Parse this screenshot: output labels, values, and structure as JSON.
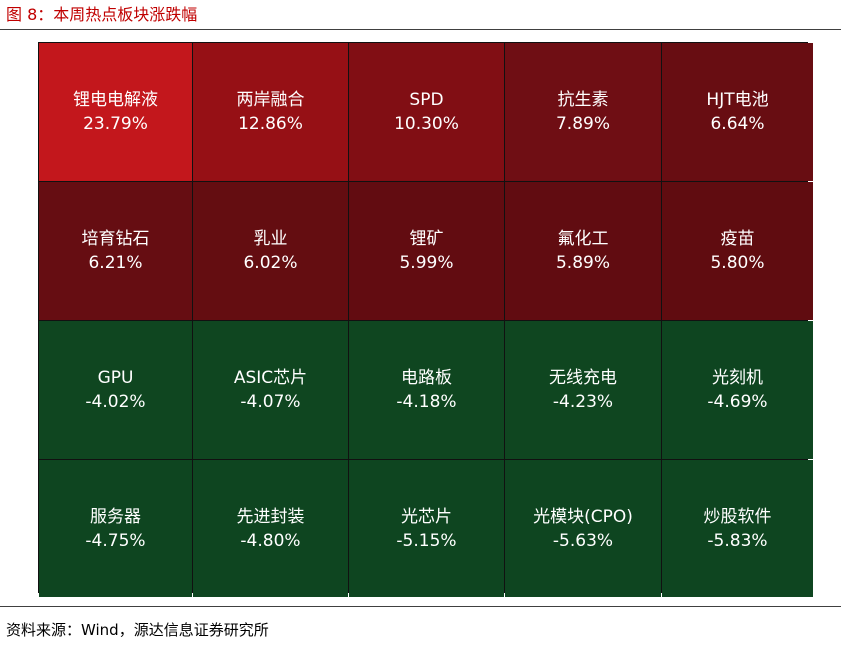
{
  "figure": {
    "title": "图 8：本周热点板块涨跌幅",
    "source": "资料来源：Wind，源达信息证券研究所"
  },
  "chart_data": {
    "type": "heatmap",
    "title": "图 8：本周热点板块涨跌幅",
    "rows": 4,
    "columns": 5,
    "cells": [
      {
        "label": "锂电电解液",
        "value": 23.79,
        "display": "23.79%",
        "color": "#c3171c"
      },
      {
        "label": "两岸融合",
        "value": 12.86,
        "display": "12.86%",
        "color": "#961015"
      },
      {
        "label": "SPD",
        "value": 10.3,
        "display": "10.30%",
        "color": "#810e14"
      },
      {
        "label": "抗生素",
        "value": 7.89,
        "display": "7.89%",
        "color": "#6f0e14"
      },
      {
        "label": "HJT电池",
        "value": 6.64,
        "display": "6.64%",
        "color": "#680d12"
      },
      {
        "label": "培育钻石",
        "value": 6.21,
        "display": "6.21%",
        "color": "#660d12"
      },
      {
        "label": "乳业",
        "value": 6.02,
        "display": "6.02%",
        "color": "#640d11"
      },
      {
        "label": "锂矿",
        "value": 5.99,
        "display": "5.99%",
        "color": "#620c11"
      },
      {
        "label": "氟化工",
        "value": 5.89,
        "display": "5.89%",
        "color": "#610c11"
      },
      {
        "label": "疫苗",
        "value": 5.8,
        "display": "5.80%",
        "color": "#600c10"
      },
      {
        "label": "GPU",
        "value": -4.02,
        "display": "-4.02%",
        "color": "#0f4620"
      },
      {
        "label": "ASIC芯片",
        "value": -4.07,
        "display": "-4.07%",
        "color": "#0f4620"
      },
      {
        "label": "电路板",
        "value": -4.18,
        "display": "-4.18%",
        "color": "#0f4620"
      },
      {
        "label": "无线充电",
        "value": -4.23,
        "display": "-4.23%",
        "color": "#0f4620"
      },
      {
        "label": "光刻机",
        "value": -4.69,
        "display": "-4.69%",
        "color": "#0e4520"
      },
      {
        "label": "服务器",
        "value": -4.75,
        "display": "-4.75%",
        "color": "#0e4520"
      },
      {
        "label": "先进封装",
        "value": -4.8,
        "display": "-4.80%",
        "color": "#0e4520"
      },
      {
        "label": "光芯片",
        "value": -5.15,
        "display": "-5.15%",
        "color": "#0e4520"
      },
      {
        "label": "光模块(CPO)",
        "value": -5.63,
        "display": "-5.63%",
        "color": "#0e4520"
      },
      {
        "label": "炒股软件",
        "value": -5.83,
        "display": "-5.83%",
        "color": "#0e4520"
      }
    ]
  }
}
